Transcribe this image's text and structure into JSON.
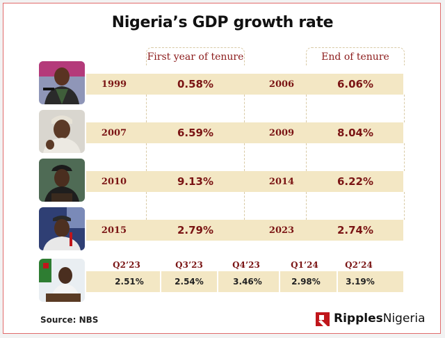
{
  "title": "Nigeria’s GDP growth rate",
  "columns": {
    "first": "First year of tenure",
    "end": "End of tenure"
  },
  "chart_data": {
    "type": "table",
    "title": "Nigeria’s GDP growth rate",
    "columns": [
      "First year of tenure",
      "End of tenure"
    ],
    "rows": [
      {
        "start_year": "1999",
        "start_value": "0.58%",
        "end_year": "2006",
        "end_value": "6.06%"
      },
      {
        "start_year": "2007",
        "start_value": "6.59%",
        "end_year": "2009",
        "end_value": "8.04%"
      },
      {
        "start_year": "2010",
        "start_value": "9.13%",
        "end_year": "2014",
        "end_value": "6.22%"
      },
      {
        "start_year": "2015",
        "start_value": "2.79%",
        "end_year": "2023",
        "end_value": "2.74%"
      }
    ],
    "quarters": [
      {
        "label": "Q2’23",
        "value": "2.51%"
      },
      {
        "label": "Q3’23",
        "value": "2.54%"
      },
      {
        "label": "Q4’23",
        "value": "3.46%"
      },
      {
        "label": "Q1’24",
        "value": "2.98%"
      },
      {
        "label": "Q2’24",
        "value": "3.19%"
      }
    ]
  },
  "footer": {
    "source": "Source: NBS",
    "brand_bold": "Ripples",
    "brand_regular": "Nigeria"
  },
  "colors": {
    "accent": "#7a1414",
    "band": "#f3e7c4",
    "border": "#e06a6a",
    "logo": "#c0161b"
  }
}
